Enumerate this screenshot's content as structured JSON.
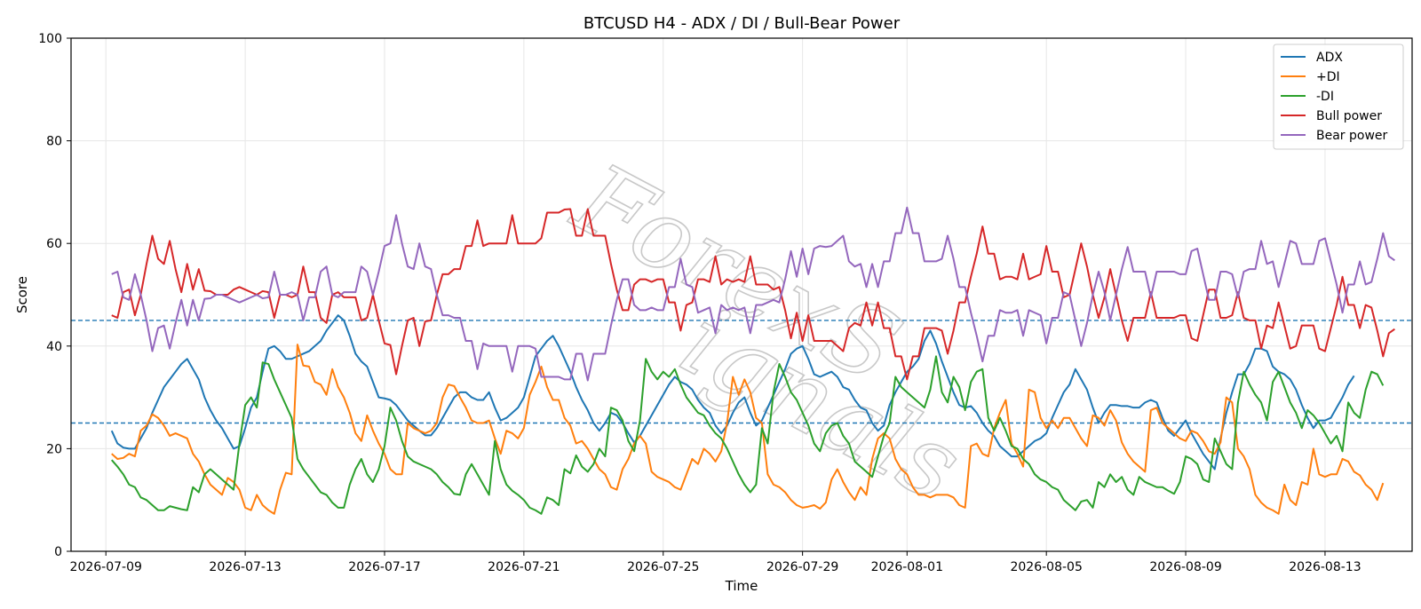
{
  "chart_data": {
    "type": "line",
    "title": "BTCUSD H4 - ADX / DI / Bull-Bear Power",
    "xlabel": "Time",
    "ylabel": "Score",
    "ylim": [
      0,
      100
    ],
    "yticks": [
      0,
      20,
      40,
      60,
      80,
      100
    ],
    "x_start": "2026-07-09 04:00",
    "x_interval_hours": 4,
    "xlim": [
      "2026-07-08",
      "2026-08-15 12:00"
    ],
    "xticks": [
      "2026-07-09",
      "2026-07-13",
      "2026-07-17",
      "2026-07-21",
      "2026-07-25",
      "2026-07-29",
      "2026-08-01",
      "2026-08-05",
      "2026-08-09",
      "2026-08-13"
    ],
    "grid": true,
    "legend_position": "top-right",
    "reference_lines": [
      {
        "y": 45,
        "style": "dashed",
        "color": "#1f77b4"
      },
      {
        "y": 25,
        "style": "dashed",
        "color": "#1f77b4"
      }
    ],
    "watermark": "ForexSignals",
    "series": [
      {
        "name": "ADX",
        "color": "#1f77b4",
        "values": [
          23.5,
          21,
          20.2,
          20,
          20,
          22,
          24,
          27,
          29.5,
          32,
          33.5,
          35,
          36.5,
          37.5,
          35.5,
          33.5,
          30,
          27.5,
          25.5,
          24,
          22,
          20,
          20.5,
          24,
          28,
          30,
          35,
          39.5,
          40,
          39,
          37.5,
          37.5,
          38,
          38.5,
          39,
          40,
          41,
          43,
          44.5,
          46,
          45,
          42,
          38.5,
          37,
          36,
          33,
          30,
          29.8,
          29.5,
          28.5,
          27,
          25.5,
          24.5,
          23.5,
          22.6,
          22.6,
          24,
          26,
          28,
          30,
          31,
          31,
          30,
          29.5,
          29.5,
          31,
          28,
          25.5,
          26,
          27,
          28,
          30,
          34,
          38,
          39.5,
          41,
          42,
          40,
          37.5,
          35,
          32,
          29.5,
          27.5,
          25,
          23.5,
          25,
          27,
          26.5,
          25,
          23,
          21.2,
          22.5,
          24.5,
          26.5,
          28.5,
          30.5,
          32.5,
          34,
          33,
          32.5,
          31.5,
          29.5,
          28,
          27,
          24.5,
          23,
          24.5,
          27,
          29,
          30,
          27,
          24.5,
          25.5,
          28,
          30.5,
          33,
          35.5,
          38.5,
          39.5,
          40,
          37.5,
          34.5,
          34,
          34.5,
          35,
          34,
          32,
          31.5,
          29.5,
          28,
          27.5,
          25,
          23.5,
          24.5,
          28.5,
          31,
          33,
          35,
          36,
          37.5,
          41,
          43,
          40.5,
          37,
          34,
          31,
          28.5,
          28,
          28.3,
          27,
          25,
          23.5,
          22.5,
          20.5,
          19.5,
          18.5,
          18.5,
          19.5,
          20.5,
          21.5,
          22,
          23,
          26,
          28.5,
          31,
          32.5,
          35.5,
          33.5,
          31.5,
          28,
          25,
          27,
          28.5,
          28.5,
          28.3,
          28.3,
          28,
          28,
          29,
          29.5,
          29,
          26,
          23.5,
          22.5,
          24,
          25.5,
          23,
          21,
          19,
          17.5,
          16,
          22,
          27,
          31,
          34.5,
          34.5,
          36.5,
          39.5,
          39.5,
          39,
          36,
          35,
          34.5,
          33.5,
          31.5,
          28.5,
          26,
          24,
          25.5,
          25.5,
          26,
          28,
          30,
          32.5,
          34.2
        ]
      },
      {
        "name": "+DI",
        "color": "#ff7f0e",
        "values": [
          19,
          18,
          18.2,
          19,
          18.5,
          23.5,
          24.5,
          26.7,
          26,
          24.5,
          22.5,
          23,
          22.5,
          22,
          19,
          17.5,
          15,
          13,
          12,
          11,
          14.3,
          13.5,
          12,
          8.5,
          8,
          11,
          9,
          8,
          7.3,
          12,
          15.3,
          15,
          40.3,
          36.2,
          36,
          33,
          32.5,
          30.5,
          35.5,
          32,
          30,
          27,
          23,
          21.5,
          26.5,
          23.5,
          21,
          19,
          16,
          15,
          15,
          25,
          24,
          23.5,
          23,
          23.5,
          25,
          30,
          32.5,
          32.2,
          30,
          28,
          25.5,
          25,
          25,
          25.5,
          22,
          19,
          23.5,
          23,
          22,
          24,
          30.5,
          33,
          36,
          32,
          29.5,
          29.5,
          26,
          24.5,
          21,
          21.5,
          20,
          18,
          16,
          15,
          12.5,
          12,
          16,
          18,
          21,
          22.5,
          21,
          15.5,
          14.5,
          14,
          13.5,
          12.5,
          12,
          15,
          18,
          17,
          20,
          19,
          17.5,
          19.5,
          25,
          34,
          30.5,
          33.5,
          31,
          26,
          25,
          15,
          13,
          12.5,
          11.5,
          10,
          9,
          8.5,
          8.7,
          9,
          8.3,
          9.5,
          14,
          16,
          13.5,
          11.5,
          10,
          12.5,
          11,
          18,
          22,
          23,
          22,
          18,
          16,
          15,
          12.5,
          11,
          11,
          10.5,
          11,
          11,
          11,
          10.5,
          9,
          8.5,
          20.5,
          21,
          19,
          18.5,
          24,
          27,
          29.5,
          21,
          19,
          16.5,
          31.5,
          31,
          26,
          24,
          25.5,
          24,
          26,
          26,
          24,
          22,
          20.5,
          26.5,
          26,
          24.5,
          27.5,
          25.5,
          21.2,
          19,
          17.5,
          16.5,
          15.5,
          27.5,
          28,
          25,
          24,
          23,
          22,
          21.5,
          23.5,
          23,
          21.5,
          19.5,
          19,
          21.2,
          30,
          29,
          20,
          18.5,
          16,
          11,
          9.5,
          8.5,
          8,
          7.3,
          13,
          10,
          9,
          13.5,
          13,
          20,
          15,
          14.5,
          15,
          15,
          18,
          17.5,
          15.5,
          14.8,
          13,
          12,
          10,
          13.3
        ]
      },
      {
        "name": "-DI",
        "color": "#2ca02c",
        "values": [
          17.8,
          16.5,
          15,
          13,
          12.5,
          10.5,
          10,
          9,
          8,
          8,
          8.8,
          8.5,
          8.2,
          8,
          12.5,
          11.5,
          15,
          16,
          15,
          14,
          13,
          12,
          21,
          28.5,
          30,
          28,
          36.8,
          36.5,
          33.5,
          31,
          28.5,
          26,
          18,
          16,
          14.5,
          13,
          11.5,
          11,
          9.5,
          8.5,
          8.5,
          13,
          16,
          18,
          15,
          13.5,
          16,
          20.5,
          28,
          25.5,
          21.5,
          18.5,
          17.5,
          17,
          16.5,
          16,
          15,
          13.5,
          12.5,
          11.2,
          11,
          15,
          17,
          15,
          13,
          11,
          21.5,
          16,
          13,
          11.8,
          11,
          10,
          8.5,
          8,
          7.3,
          10.5,
          10,
          9,
          16,
          15.2,
          18.7,
          16.5,
          15.5,
          17,
          20,
          18.5,
          28,
          27.5,
          25.5,
          21.5,
          19.5,
          25.5,
          37.5,
          35,
          33.5,
          35,
          34,
          35.5,
          32.5,
          30,
          28.5,
          27,
          26.5,
          24.5,
          23,
          22,
          20,
          17.5,
          15,
          13,
          11.5,
          13,
          24,
          21,
          31,
          36.5,
          34,
          31,
          29.5,
          27,
          24.5,
          21,
          19.5,
          23,
          24.5,
          25,
          22.5,
          21,
          17.5,
          16.5,
          15.5,
          14.5,
          18.5,
          22.5,
          25,
          34,
          32,
          31,
          30,
          29,
          28,
          31.5,
          38,
          31,
          29,
          34,
          32,
          27.5,
          33,
          35,
          35.5,
          26,
          23.5,
          26,
          23.5,
          20.5,
          20,
          18,
          17,
          15,
          14,
          13.5,
          12.5,
          12,
          10,
          9,
          8,
          9.7,
          10,
          8.5,
          13.5,
          12.5,
          15,
          13.5,
          14.5,
          12,
          11,
          14.5,
          13.5,
          13,
          12.5,
          12.5,
          11.8,
          11.2,
          13.5,
          18.5,
          18,
          17,
          14,
          13.5,
          22,
          19.5,
          17,
          16,
          29,
          35,
          32.5,
          30.5,
          29,
          25.5,
          33,
          35,
          32,
          29,
          27,
          24,
          27.5,
          26.5,
          25,
          23,
          21,
          22.5,
          19.5,
          29,
          27,
          26,
          31.5,
          35,
          34.5,
          32.3
        ]
      },
      {
        "name": "Bull power",
        "color": "#d62728",
        "values": [
          46,
          45.5,
          50.5,
          51,
          46,
          50,
          56,
          61.5,
          57,
          56,
          60.5,
          55,
          50.5,
          56,
          51,
          55,
          50.8,
          50.7,
          50,
          50,
          50,
          51,
          51.5,
          51,
          50.5,
          50,
          50.7,
          50.5,
          45.5,
          50,
          50,
          49.5,
          50,
          55.5,
          50.5,
          50.5,
          45.5,
          44.5,
          50,
          50.5,
          49.5,
          49.5,
          49.5,
          45,
          45.5,
          50,
          45,
          40.5,
          40.2,
          34.5,
          40,
          45,
          45.5,
          40,
          44.8,
          45,
          50,
          54,
          54,
          55,
          55,
          59.5,
          59.5,
          64.5,
          59.5,
          60,
          60,
          60,
          60,
          65.5,
          60,
          60,
          60,
          60,
          61,
          66,
          66,
          66,
          66.6,
          66.7,
          61.5,
          61.5,
          66.7,
          61.5,
          61.5,
          61.5,
          56,
          51,
          47,
          47,
          52,
          53,
          53,
          52.5,
          53,
          53,
          48.5,
          48.5,
          43,
          48,
          48.5,
          53,
          53,
          52.5,
          57.5,
          52,
          53,
          52.5,
          53,
          52.5,
          57.5,
          52,
          52,
          52,
          51,
          51.5,
          47,
          41.5,
          46.5,
          41,
          46,
          41,
          41,
          41,
          41,
          40,
          39,
          43.5,
          44.5,
          44,
          48.5,
          44,
          48.5,
          43.5,
          43.5,
          38,
          38,
          33.5,
          38,
          38,
          43.5,
          43.5,
          43.5,
          43,
          38.5,
          43,
          48.5,
          48.5,
          53.5,
          58,
          63.3,
          58,
          58,
          53,
          53.5,
          53.5,
          53,
          58,
          53,
          53.5,
          54,
          59.5,
          54.5,
          54.5,
          49.5,
          50,
          55,
          60,
          55.5,
          50,
          45.5,
          49.5,
          55,
          50,
          45,
          41,
          45.5,
          45.5,
          45.5,
          50.5,
          45.5,
          45.5,
          45.5,
          45.5,
          46,
          46,
          41.5,
          41,
          46,
          51,
          51,
          45.5,
          45.5,
          46,
          50.5,
          45.5,
          45,
          45,
          39.5,
          44,
          43.5,
          48.5,
          44,
          39.5,
          40,
          44,
          44,
          44,
          39.5,
          39,
          43.5,
          48,
          53.5,
          48,
          48,
          43.5,
          48,
          47.5,
          43,
          38,
          42.5,
          43.3
        ]
      },
      {
        "name": "Bear power",
        "color": "#9467bd",
        "values": [
          54,
          54.5,
          49.5,
          49,
          54,
          50,
          45,
          39,
          43.5,
          44,
          39.5,
          44.5,
          49,
          44,
          49,
          45,
          49.2,
          49.3,
          50,
          50,
          49.5,
          49,
          48.5,
          49,
          49.5,
          50,
          49.3,
          49.5,
          54.5,
          50,
          50,
          50.5,
          50,
          45,
          49.5,
          49.5,
          54.5,
          55.5,
          50,
          49.5,
          50.5,
          50.5,
          50.5,
          55.5,
          54.5,
          50,
          54.5,
          59.5,
          60,
          65.5,
          60,
          55.5,
          55,
          60,
          55.5,
          55,
          50,
          46,
          46,
          45.5,
          45.5,
          41,
          41,
          35.5,
          40.5,
          40,
          40,
          40,
          40,
          35,
          40,
          40,
          40,
          39.5,
          34,
          34,
          34,
          34,
          33.5,
          33.5,
          38.5,
          38.5,
          33.3,
          38.5,
          38.5,
          38.5,
          44,
          49,
          53,
          53,
          48,
          47,
          47,
          47.5,
          47,
          47,
          51.5,
          51.5,
          57,
          52,
          51.5,
          46.5,
          47,
          47.5,
          42.5,
          48,
          47,
          47.5,
          47,
          47.5,
          42.5,
          48,
          48,
          48.5,
          49,
          48.5,
          53,
          58.5,
          53.5,
          59,
          54,
          59,
          59.5,
          59.3,
          59.5,
          60.5,
          61.5,
          56.5,
          55.5,
          56,
          51.5,
          56,
          51.5,
          56.5,
          56.5,
          62,
          62,
          67,
          62,
          62,
          56.5,
          56.5,
          56.5,
          57,
          61.5,
          57,
          51.5,
          51.5,
          46.5,
          42,
          37,
          42,
          42,
          47,
          46.5,
          46.5,
          47,
          42,
          47,
          46.5,
          46,
          40.5,
          45.5,
          45.5,
          50.5,
          50,
          45,
          40,
          44.5,
          50,
          54.5,
          50.5,
          45,
          50,
          55,
          59.3,
          54.5,
          54.5,
          54.5,
          49.5,
          54.5,
          54.5,
          54.5,
          54.5,
          54,
          54,
          58.5,
          59,
          54,
          49,
          49,
          54.5,
          54.5,
          54,
          49.5,
          54.5,
          55,
          55,
          60.5,
          56,
          56.5,
          51.5,
          56,
          60.5,
          60,
          56,
          56,
          56,
          60.5,
          61,
          56.5,
          52,
          46.5,
          52,
          52,
          56.5,
          52,
          52.5,
          57,
          62,
          57.5,
          56.7
        ]
      }
    ]
  }
}
